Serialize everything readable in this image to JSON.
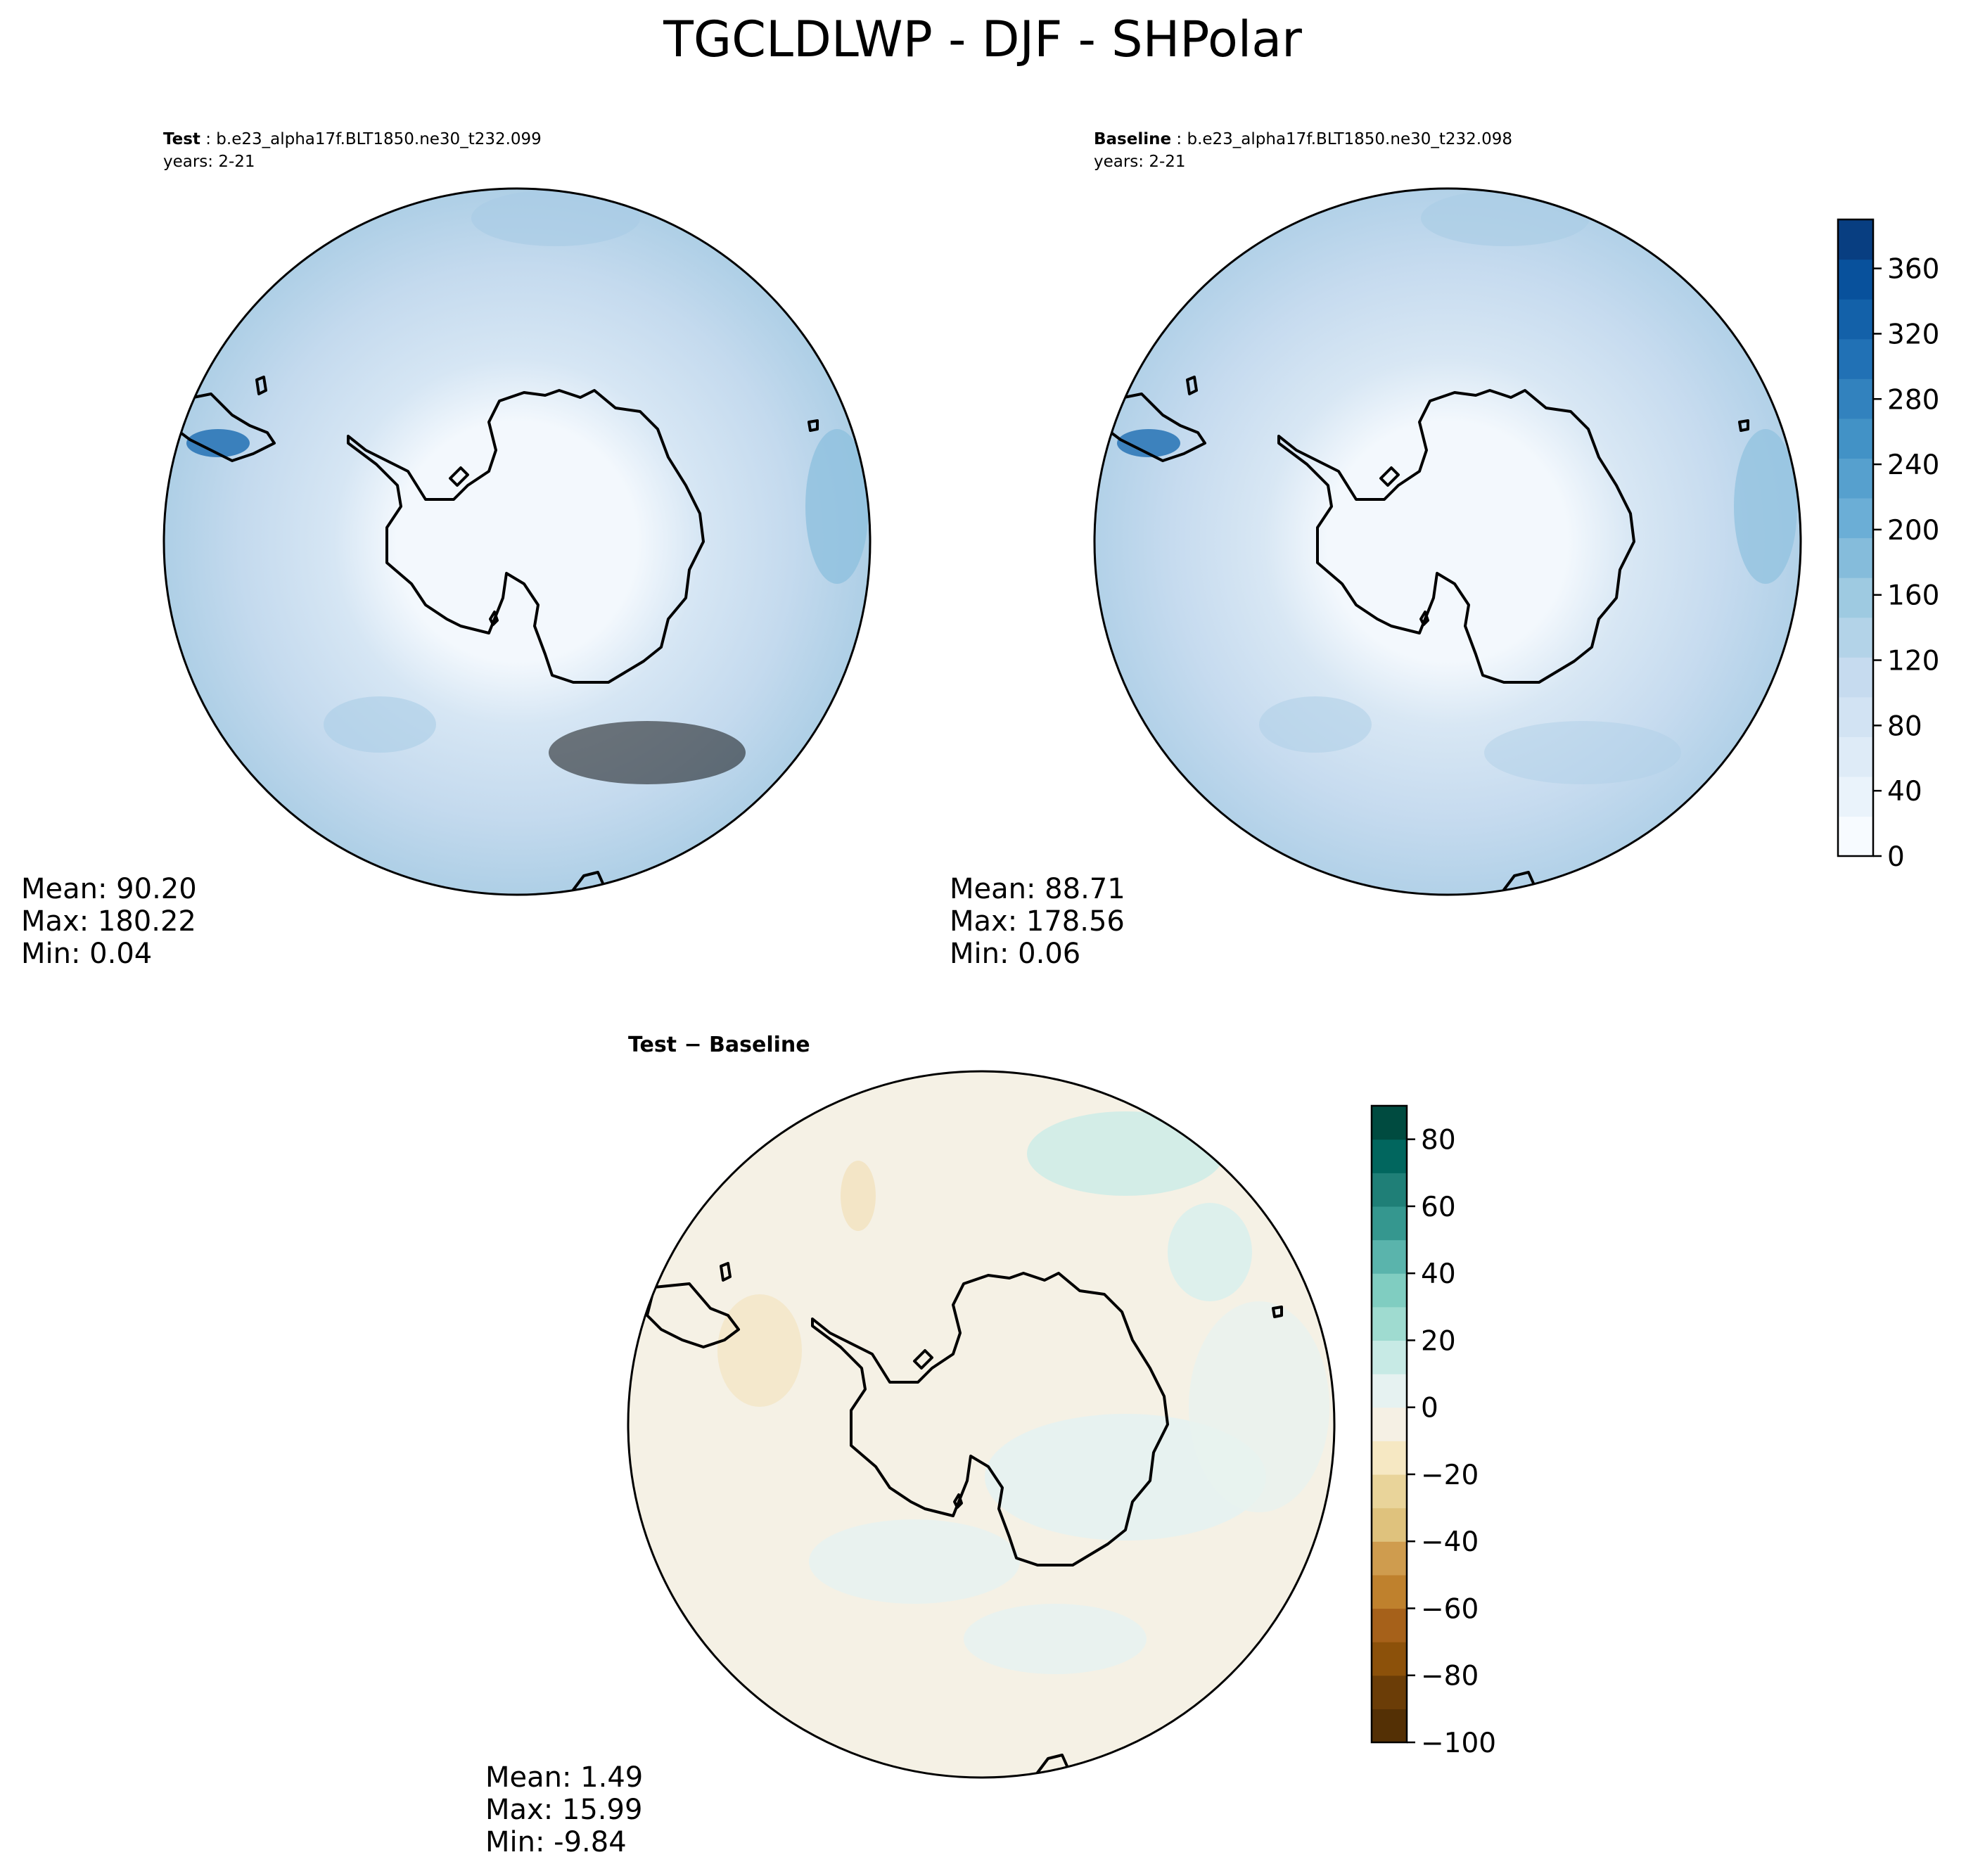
{
  "title": "TGCLDLWP - DJF - SHPolar",
  "panels": [
    {
      "id": "test",
      "label_bold": "Test",
      "label_rest": " : b.e23_alpha17f.BLT1850.ne30_t232.099",
      "years": "years: 2-21",
      "stats": {
        "mean": "Mean: 90.20",
        "max": "Max: 180.22",
        "min": "Min:  0.04"
      }
    },
    {
      "id": "baseline",
      "label_bold": "Baseline",
      "label_rest": " : b.e23_alpha17f.BLT1850.ne30_t232.098",
      "years": "years: 2-21",
      "stats": {
        "mean": "Mean: 88.71",
        "max": "Max: 178.56",
        "min": "Min:  0.06"
      }
    },
    {
      "id": "diff",
      "label_bold": "Test − Baseline",
      "label_rest": "",
      "years": "",
      "stats": {
        "mean": "Mean:  1.49",
        "max": "Max: 15.99",
        "min": "Min: -9.84"
      }
    }
  ],
  "colorbars": {
    "main": {
      "range": [
        0,
        390
      ],
      "ticks": [
        0,
        40,
        80,
        120,
        160,
        200,
        240,
        280,
        320,
        360
      ],
      "tick_labels": [
        "0",
        "40",
        "80",
        "120",
        "160",
        "200",
        "240",
        "280",
        "320",
        "360"
      ],
      "colors": [
        "#f7fbff",
        "#eaf3fb",
        "#deebf7",
        "#d2e3f3",
        "#c6dbef",
        "#b3d3e8",
        "#9ecae1",
        "#85bcdb",
        "#6baed6",
        "#56a0ce",
        "#4292c6",
        "#3282be",
        "#2171b5",
        "#1361a9",
        "#08519c",
        "#083e81"
      ]
    },
    "diff": {
      "range": [
        -100,
        90
      ],
      "ticks": [
        -100,
        -80,
        -60,
        -40,
        -20,
        0,
        20,
        40,
        60,
        80
      ],
      "tick_labels": [
        "−100",
        "−80",
        "−60",
        "−40",
        "−20",
        "0",
        "20",
        "40",
        "60",
        "80"
      ],
      "colors": [
        "#543005",
        "#6b3d07",
        "#8c510a",
        "#a6611a",
        "#bf812d",
        "#cf9c4e",
        "#dfc27d",
        "#e9d49a",
        "#f6e8c3",
        "#f5f0e4",
        "#e6f2f1",
        "#c7eae5",
        "#9fdbd0",
        "#80cdc1",
        "#5ab4ac",
        "#35978f",
        "#1f7f77",
        "#01665e",
        "#004b40"
      ]
    }
  }
}
